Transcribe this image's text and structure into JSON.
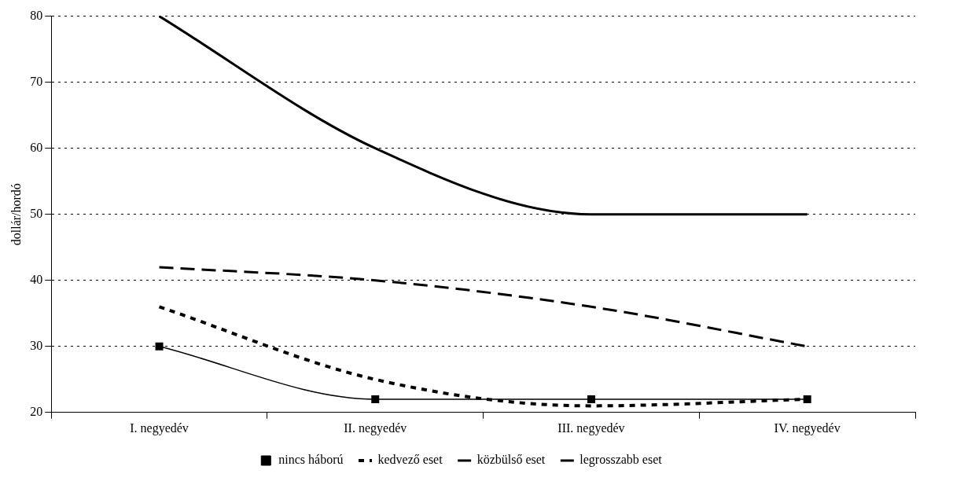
{
  "chart_data": {
    "type": "line",
    "ylabel": "dollár/hordó",
    "categories": [
      "I. negyedév",
      "II. negyedév",
      "III. negyedév",
      "IV. negyedév"
    ],
    "series": [
      {
        "name": "nincs háború",
        "color": "#000000",
        "values": [
          30,
          22,
          22,
          22
        ],
        "marker": "square",
        "line_style": "solid"
      },
      {
        "name": "kedvező eset",
        "color": "#000000",
        "values": [
          36,
          25,
          21,
          22
        ],
        "marker": "none",
        "line_style": "dotted"
      },
      {
        "name": "közbülső eset",
        "color": "#000000",
        "values": [
          42,
          40,
          36,
          30
        ],
        "marker": "none",
        "line_style": "dashed"
      },
      {
        "name": "legrosszabb eset",
        "color": "#000000",
        "values": [
          80,
          60,
          50,
          50
        ],
        "marker": "none",
        "line_style": "solid"
      }
    ],
    "ylim": [
      20,
      80
    ],
    "yticks": [
      20,
      30,
      40,
      50,
      60,
      70,
      80
    ],
    "grid": "y",
    "legend": "bottom"
  }
}
